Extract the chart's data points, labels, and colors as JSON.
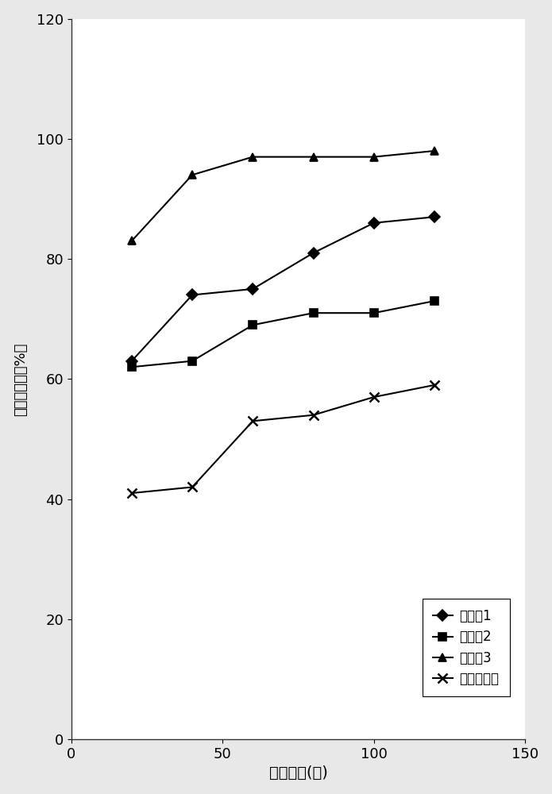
{
  "series": [
    {
      "label": "实施例1",
      "x": [
        20,
        40,
        60,
        80,
        100,
        120
      ],
      "y": [
        63,
        74,
        75,
        81,
        86,
        87
      ],
      "marker": "D",
      "color": "#000000",
      "markersize": 7,
      "linewidth": 1.5
    },
    {
      "label": "实施例2",
      "x": [
        20,
        40,
        60,
        80,
        100,
        120
      ],
      "y": [
        62,
        63,
        69,
        71,
        71,
        73
      ],
      "marker": "s",
      "color": "#000000",
      "markersize": 7,
      "linewidth": 1.5
    },
    {
      "label": "实施例3",
      "x": [
        20,
        40,
        60,
        80,
        100,
        120
      ],
      "y": [
        83,
        94,
        97,
        97,
        97,
        98
      ],
      "marker": "^",
      "color": "#000000",
      "markersize": 7,
      "linewidth": 1.5
    },
    {
      "label": "市售某品牌",
      "x": [
        20,
        40,
        60,
        80,
        100,
        120
      ],
      "y": [
        41,
        42,
        53,
        54,
        57,
        59
      ],
      "marker": "x",
      "color": "#000000",
      "markersize": 9,
      "linewidth": 1.5
    }
  ],
  "xlabel": "处理时间(月)",
  "ylabel": "沉淠稳定率（%）",
  "xlim": [
    0,
    150
  ],
  "ylim": [
    0,
    120
  ],
  "xticks": [
    0,
    50,
    100,
    150
  ],
  "yticks": [
    0,
    20,
    40,
    60,
    80,
    100,
    120
  ],
  "background_color": "#e8e8e8",
  "plot_bg_color": "#ffffff",
  "xlabel_fontsize": 14,
  "ylabel_fontsize": 13,
  "tick_fontsize": 13,
  "legend_fontsize": 12,
  "fig_width": 6.95,
  "fig_height": 10.0,
  "dpi": 100
}
